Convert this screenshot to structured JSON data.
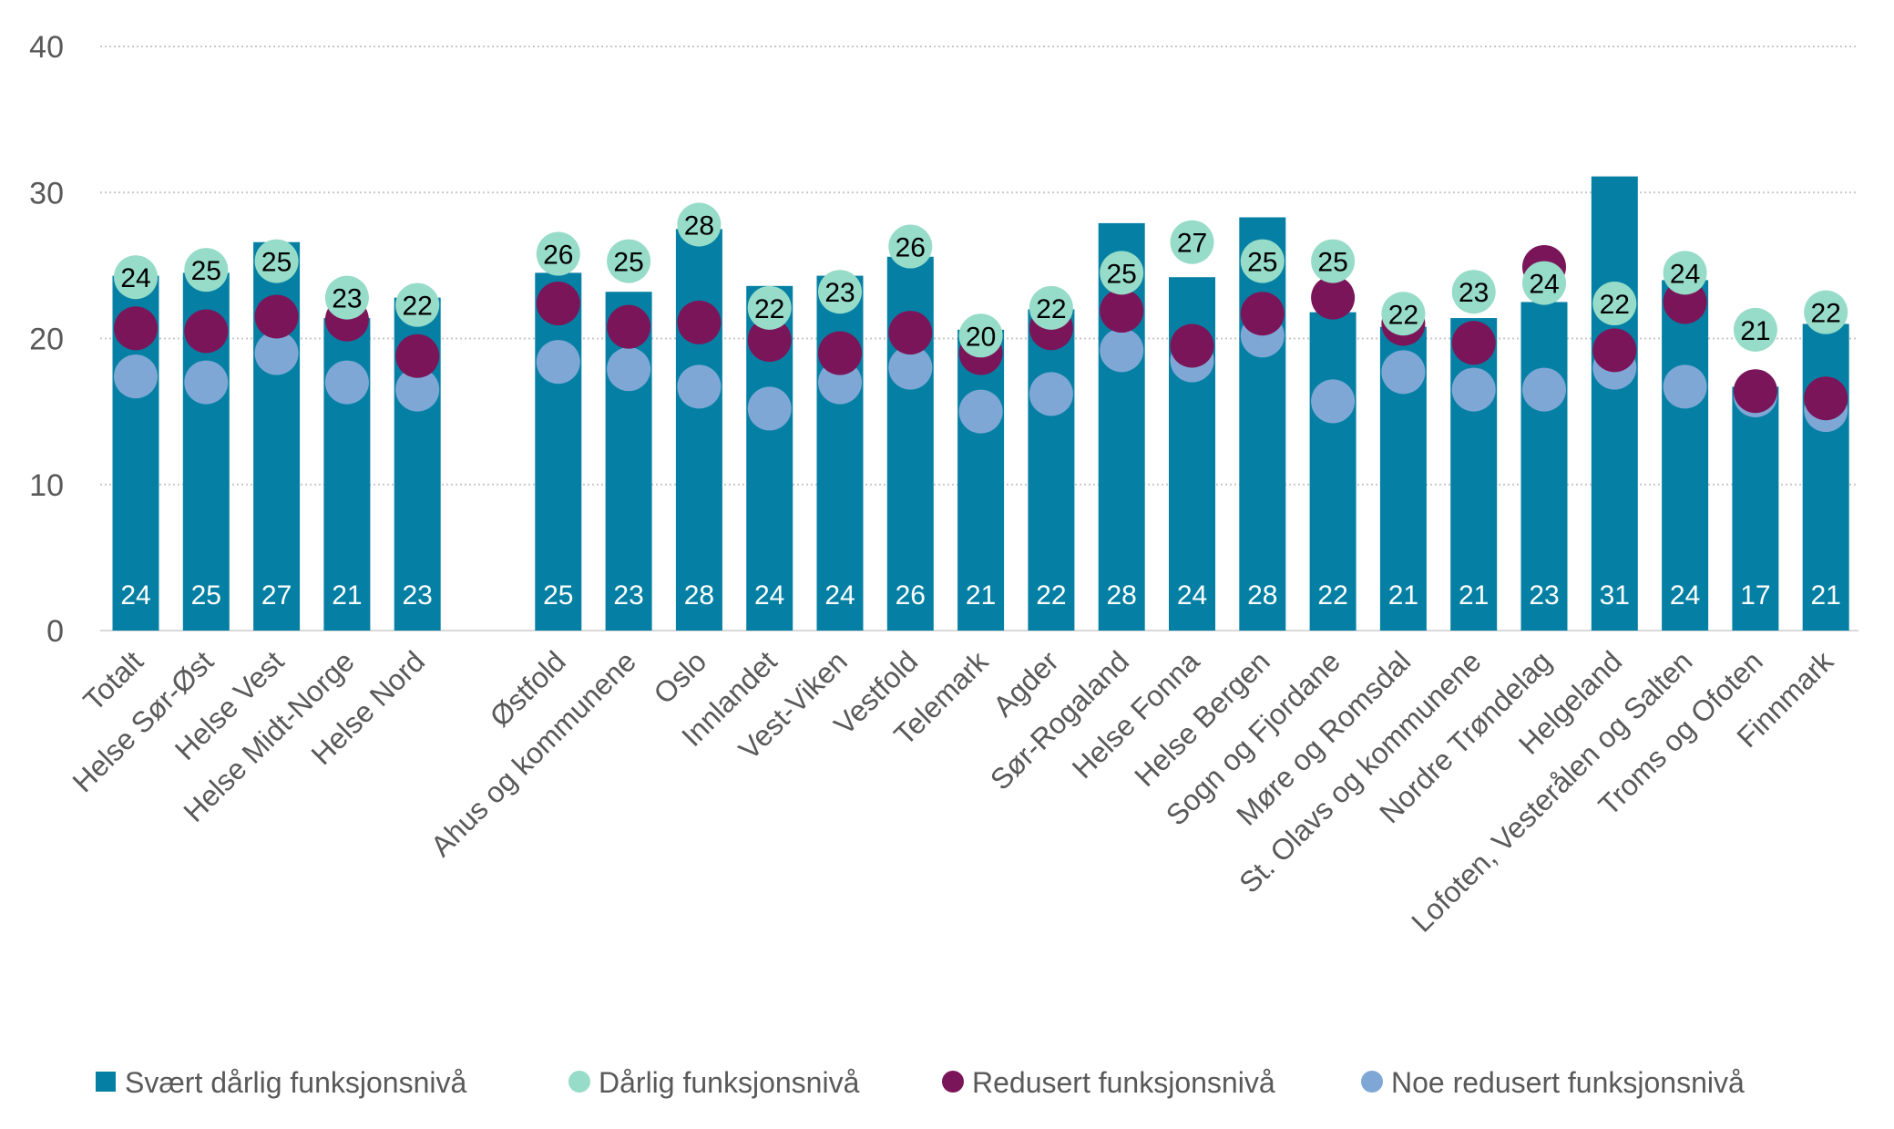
{
  "chart_data": {
    "type": "bar",
    "title": "",
    "xlabel": "",
    "ylabel": "",
    "ylim": [
      0,
      40
    ],
    "yticks": [
      0,
      10,
      20,
      30,
      40
    ],
    "grid": true,
    "legend_position": "bottom",
    "categories": [
      "Totalt",
      "Helse Sør-Øst",
      "Helse Vest",
      "Helse Midt-Norge",
      "Helse Nord",
      "Østfold",
      "Ahus og kommunene",
      "Oslo",
      "Innlandet",
      "Vest-Viken",
      "Vestfold",
      "Telemark",
      "Agder",
      "Sør-Rogaland",
      "Helse Fonna",
      "Helse Bergen",
      "Sogn og Fjordane",
      "Møre og Romsdal",
      "St. Olavs og kommunene",
      "Nordre Trøndelag",
      "Helgeland",
      "Lofoten, Vesterålen og Salten",
      "Troms og Ofoten",
      "Finnmark"
    ],
    "gap_after_index": 4,
    "series": [
      {
        "name": "Svært dårlig funksjonsnivå",
        "kind": "bar",
        "color": "#0580a4",
        "labeled": true,
        "values": [
          24.3,
          24.5,
          26.6,
          21.4,
          22.8,
          24.5,
          23.2,
          27.5,
          23.6,
          24.3,
          25.6,
          20.6,
          22.0,
          27.9,
          24.2,
          28.3,
          21.8,
          20.8,
          21.4,
          22.5,
          31.1,
          24.0,
          16.7,
          21.0
        ],
        "labels": [
          "24",
          "25",
          "27",
          "21",
          "23",
          "25",
          "23",
          "28",
          "24",
          "24",
          "26",
          "21",
          "22",
          "28",
          "24",
          "28",
          "22",
          "21",
          "21",
          "23",
          "31",
          "24",
          "17",
          "21"
        ]
      },
      {
        "name": "Dårlig funksjonsnivå",
        "kind": "dot",
        "color": "#96dcc8",
        "labeled": true,
        "values": [
          24.2,
          24.7,
          25.3,
          22.8,
          22.3,
          25.8,
          25.3,
          27.8,
          22.1,
          23.2,
          26.3,
          20.2,
          22.1,
          24.5,
          26.6,
          25.3,
          25.3,
          21.7,
          23.2,
          23.8,
          22.4,
          24.5,
          20.6,
          21.8
        ],
        "labels": [
          "24",
          "25",
          "25",
          "23",
          "22",
          "26",
          "25",
          "28",
          "22",
          "23",
          "26",
          "20",
          "22",
          "25",
          "27",
          "25",
          "25",
          "22",
          "23",
          "24",
          "22",
          "24",
          "21",
          "22"
        ]
      },
      {
        "name": "Redusert funksjonsnivå",
        "kind": "dot",
        "color": "#7b1559",
        "labeled": false,
        "values": [
          20.7,
          20.5,
          21.5,
          21.3,
          18.8,
          22.4,
          20.8,
          21.1,
          19.9,
          19.0,
          20.4,
          19.0,
          20.7,
          21.9,
          19.5,
          21.7,
          22.8,
          21.0,
          19.7,
          24.9,
          19.2,
          22.5,
          16.4,
          15.9
        ]
      },
      {
        "name": "Noe redusert funksjonsnivå",
        "kind": "dot",
        "color": "#7fa7d6",
        "labeled": false,
        "values": [
          17.4,
          17.0,
          19.0,
          17.0,
          16.5,
          18.4,
          17.9,
          16.7,
          15.2,
          17.0,
          18.0,
          15.0,
          16.2,
          19.2,
          18.5,
          20.2,
          15.7,
          17.7,
          16.5,
          16.5,
          18.0,
          16.7,
          16.1,
          15.1
        ]
      }
    ]
  }
}
